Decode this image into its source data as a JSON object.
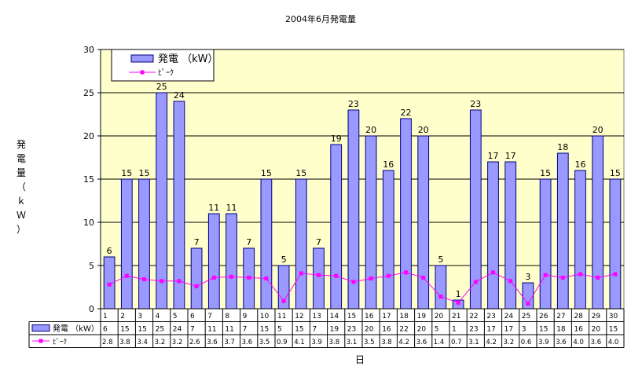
{
  "chart_data": {
    "type": "bar",
    "title": "2004年6月発電量",
    "xlabel": "日",
    "ylabel": "発電量（ｋＷ）",
    "ylim": [
      0,
      30
    ],
    "yticks": [
      0,
      5,
      10,
      15,
      20,
      25,
      30
    ],
    "grid": true,
    "legend_position": "top-left",
    "categories": [
      "1",
      "2",
      "3",
      "4",
      "5",
      "6",
      "7",
      "8",
      "9",
      "10",
      "11",
      "12",
      "13",
      "14",
      "15",
      "16",
      "17",
      "18",
      "19",
      "20",
      "21",
      "22",
      "23",
      "24",
      "25",
      "26",
      "27",
      "28",
      "29",
      "30"
    ],
    "series": [
      {
        "name": "発電 （kW）",
        "type": "bar",
        "color": "#9999ff",
        "values": [
          6,
          15,
          15,
          25,
          24,
          7,
          11,
          11,
          7,
          15,
          5,
          15,
          7,
          19,
          23,
          20,
          16,
          22,
          20,
          5,
          1,
          23,
          17,
          17,
          3,
          15,
          18,
          16,
          20,
          15
        ]
      },
      {
        "name": "ﾋﾟｰｸ",
        "type": "line",
        "color": "#ff00ff",
        "values": [
          2.8,
          3.8,
          3.4,
          3.2,
          3.2,
          2.6,
          3.6,
          3.7,
          3.6,
          3.5,
          0.9,
          4.1,
          3.9,
          3.8,
          3.1,
          3.5,
          3.8,
          4.2,
          3.6,
          1.4,
          0.7,
          3.1,
          4.2,
          3.2,
          0.6,
          3.9,
          3.6,
          4.0,
          3.6,
          4.0
        ],
        "table_labels": [
          "2.8",
          "3.8",
          "3.4",
          "3.2",
          "3.2",
          "2.6",
          "3.6",
          "3.7",
          "3.6",
          "3.5",
          "0.9",
          "4.1",
          "3.9",
          "3.8",
          "3.1",
          "3.5",
          "3.8",
          "4.2",
          "3.6",
          "1.4",
          "0.7",
          "3.1",
          "4.2",
          "3.2",
          "0.6",
          "3.9",
          "3.6",
          "4.0",
          "3.6",
          "4.0"
        ]
      }
    ],
    "colors": {
      "plot_background": "#ffffcc",
      "bar_fill": "#9999ff",
      "bar_stroke": "#000080",
      "line": "#ff00ff",
      "grid": "#000000"
    }
  }
}
